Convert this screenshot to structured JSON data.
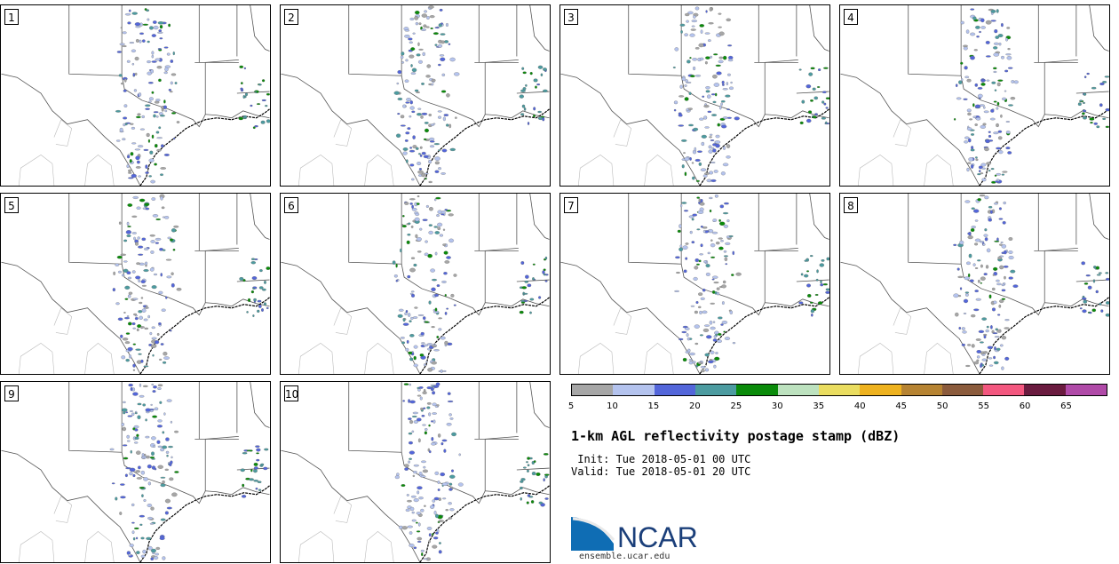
{
  "colorbar": {
    "colors": [
      "#a6a6a6",
      "#b4c3ee",
      "#5366da",
      "#4c9ba0",
      "#0a8b0a",
      "#bde2bf",
      "#eadd60",
      "#eeb21f",
      "#b68332",
      "#8b5b3c",
      "#f3577f",
      "#6a1b3f",
      "#b04aa8"
    ],
    "ticks": [
      "5",
      "10",
      "15",
      "20",
      "25",
      "30",
      "35",
      "40",
      "45",
      "50",
      "55",
      "60",
      "65"
    ]
  },
  "title": "1-km AGL reflectivity postage stamp (dBZ)",
  "init": " Init: Tue 2018-05-01 00 UTC",
  "valid": "Valid: Tue 2018-05-01 20 UTC",
  "logo_text": "NCAR",
  "site": "ensemble.ucar.edu",
  "panels": [
    {
      "label": "1",
      "seed": 11
    },
    {
      "label": "2",
      "seed": 23
    },
    {
      "label": "3",
      "seed": 37
    },
    {
      "label": "4",
      "seed": 41
    },
    {
      "label": "5",
      "seed": 53
    },
    {
      "label": "6",
      "seed": 67
    },
    {
      "label": "7",
      "seed": 71
    },
    {
      "label": "8",
      "seed": 83
    },
    {
      "label": "9",
      "seed": 97
    },
    {
      "label": "10",
      "seed": 101
    }
  ]
}
